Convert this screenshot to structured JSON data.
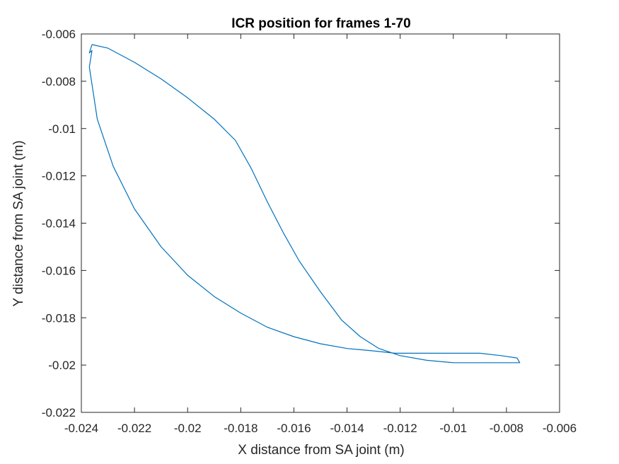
{
  "chart_data": {
    "type": "line",
    "title": "ICR position for frames 1-70",
    "xlabel": "X distance from SA joint (m)",
    "ylabel": "Y distance from SA joint (m)",
    "xlim": [
      -0.024,
      -0.006
    ],
    "ylim": [
      -0.022,
      -0.006
    ],
    "xticks": [
      -0.024,
      -0.022,
      -0.02,
      -0.018,
      -0.016,
      -0.014,
      -0.012,
      -0.01,
      -0.008,
      -0.006
    ],
    "xtick_labels": [
      "-0.024",
      "-0.022",
      "-0.02",
      "-0.018",
      "-0.016",
      "-0.014",
      "-0.012",
      "-0.01",
      "-0.008",
      "-0.006"
    ],
    "yticks": [
      -0.006,
      -0.008,
      -0.01,
      -0.012,
      -0.014,
      -0.016,
      -0.018,
      -0.02,
      -0.022
    ],
    "ytick_labels": [
      "-0.006",
      "-0.008",
      "-0.01",
      "-0.012",
      "-0.014",
      "-0.016",
      "-0.018",
      "-0.02",
      "-0.022"
    ],
    "grid": false,
    "line_color": "#0072BD",
    "series": [
      {
        "x": [
          -0.0236,
          -0.023,
          -0.022,
          -0.021,
          -0.02,
          -0.019,
          -0.0182,
          -0.0176,
          -0.017,
          -0.0164,
          -0.0158,
          -0.015,
          -0.0142,
          -0.0135,
          -0.0128,
          -0.012,
          -0.011,
          -0.01,
          -0.009,
          -0.0075,
          -0.0076,
          -0.0082,
          -0.009,
          -0.0098,
          -0.0106,
          -0.0114,
          -0.0122,
          -0.013,
          -0.014,
          -0.015,
          -0.016,
          -0.017,
          -0.018,
          -0.019,
          -0.02,
          -0.021,
          -0.022,
          -0.0228,
          -0.0234,
          -0.0237,
          -0.0236,
          -0.0237,
          -0.0236
        ],
        "y": [
          -0.00645,
          -0.0066,
          -0.0072,
          -0.0079,
          -0.0087,
          -0.0096,
          -0.0105,
          -0.0117,
          -0.0131,
          -0.0144,
          -0.0156,
          -0.0169,
          -0.0181,
          -0.0188,
          -0.0193,
          -0.0196,
          -0.0198,
          -0.0199,
          -0.0199,
          -0.0199,
          -0.0197,
          -0.0196,
          -0.0195,
          -0.0195,
          -0.0195,
          -0.0195,
          -0.0195,
          -0.0194,
          -0.0193,
          -0.0191,
          -0.0188,
          -0.0184,
          -0.0178,
          -0.0171,
          -0.0162,
          -0.015,
          -0.0134,
          -0.0116,
          -0.0096,
          -0.0074,
          -0.0067,
          -0.0068,
          -0.00645
        ]
      }
    ]
  }
}
